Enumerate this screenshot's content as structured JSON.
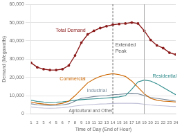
{
  "chart_data": {
    "type": "line",
    "xlabel": "Time of Day (End of Hour)",
    "ylabel": "Demand (Megawatts)",
    "x": [
      1,
      2,
      3,
      4,
      5,
      6,
      7,
      8,
      9,
      10,
      11,
      12,
      13,
      14,
      15,
      16,
      17,
      18,
      19,
      20,
      21,
      22,
      23,
      24
    ],
    "series": [
      {
        "name": "Total Demand",
        "color": "#8B1A1A",
        "marker": "o",
        "values": [
          28000,
          25500,
          24500,
          24000,
          24000,
          24500,
          26500,
          32000,
          39000,
          43500,
          45500,
          47000,
          48000,
          48800,
          49200,
          49500,
          50000,
          49500,
          45500,
          40500,
          37500,
          36000,
          33500,
          32500
        ]
      },
      {
        "name": "Commercial",
        "color": "#CC6600",
        "values": [
          6500,
          5800,
          5400,
          5200,
          5300,
          5800,
          7000,
          10000,
          13500,
          17000,
          19000,
          20500,
          21500,
          22000,
          21500,
          20500,
          18000,
          14500,
          11000,
          8500,
          7500,
          7000,
          6800,
          6500
        ]
      },
      {
        "name": "Residential",
        "color": "#2E8B8B",
        "values": [
          7500,
          6800,
          6500,
          6300,
          6400,
          6600,
          7000,
          7500,
          7800,
          8000,
          8200,
          8400,
          8700,
          9000,
          9300,
          10000,
          13500,
          17500,
          18500,
          18000,
          16500,
          14500,
          12500,
          10500
        ]
      },
      {
        "name": "Industrial",
        "color": "#778899",
        "values": [
          5500,
          5000,
          4800,
          4600,
          4700,
          4900,
          5500,
          7000,
          8500,
          9000,
          9500,
          9800,
          10000,
          10500,
          10700,
          11000,
          11200,
          11000,
          10000,
          9000,
          8500,
          8000,
          7500,
          7000
        ]
      },
      {
        "name": "Agricultural and Other",
        "color": "#C0C0D8",
        "values": [
          3800,
          3400,
          3200,
          3100,
          3200,
          3400,
          3800,
          4300,
          4700,
          5000,
          5200,
          5400,
          5500,
          5700,
          5800,
          5800,
          5800,
          5700,
          5300,
          4900,
          4600,
          4400,
          4200,
          4100
        ]
      }
    ],
    "xlim": [
      1,
      24
    ],
    "xticks": [
      1,
      2,
      3,
      4,
      5,
      6,
      7,
      8,
      9,
      10,
      11,
      12,
      13,
      14,
      15,
      16,
      17,
      18,
      19,
      20,
      21,
      22,
      23,
      24
    ],
    "ylim": [
      0,
      60000
    ],
    "yticks": [
      0,
      {
        "value": 10000,
        "label": "10,000"
      },
      {
        "value": 20000,
        "label": "20,000"
      },
      {
        "value": 30000,
        "label": "30,000"
      },
      {
        "value": 40000,
        "label": "40,000"
      },
      {
        "value": 50000,
        "label": "50,000"
      },
      {
        "value": 60000,
        "label": "60,000"
      }
    ],
    "grid": "y",
    "vlines": [
      14,
      19
    ],
    "annotations": [
      {
        "text": "Extended\nPeak",
        "x": 14.4,
        "y": 39000
      }
    ]
  }
}
